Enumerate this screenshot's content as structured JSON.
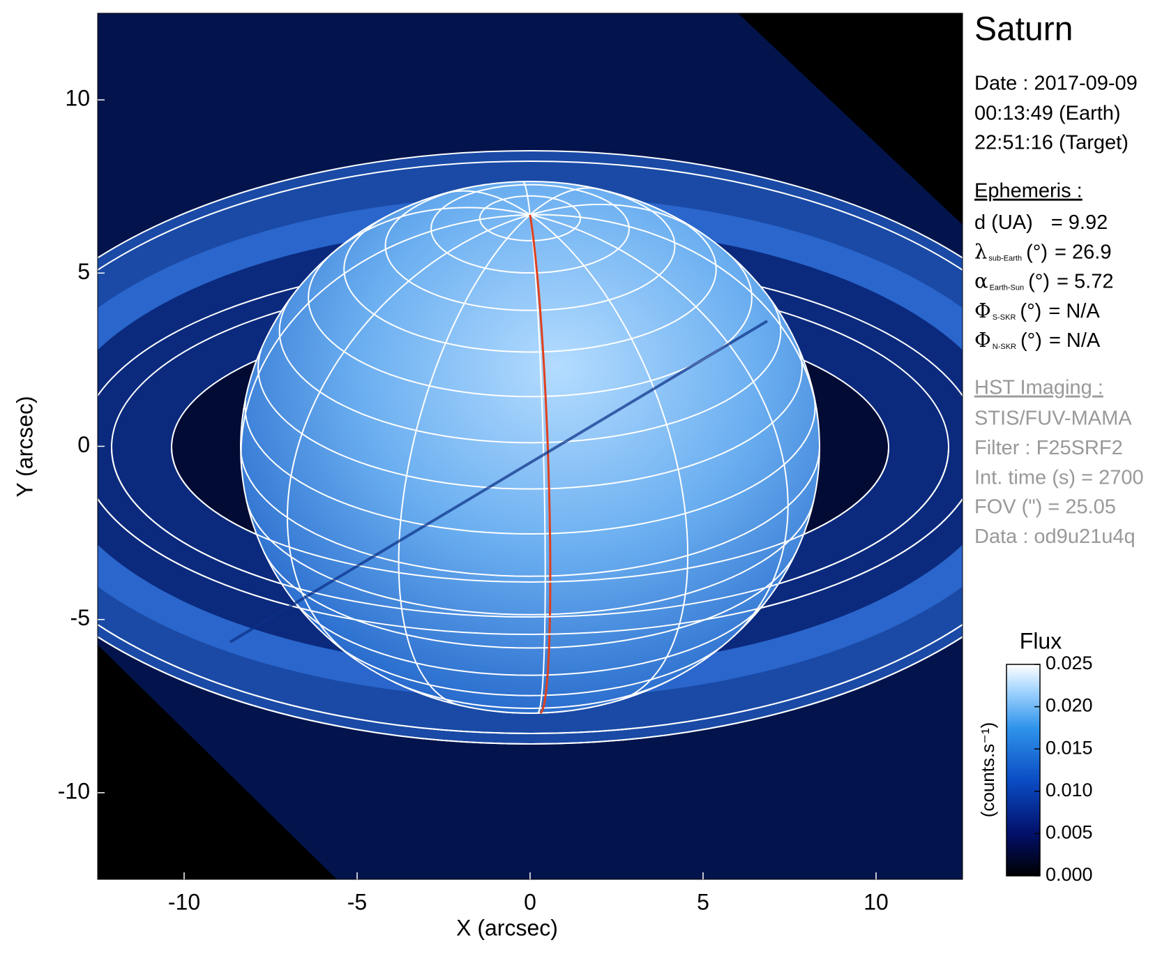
{
  "chart_data": {
    "type": "image",
    "title": "Saturn",
    "xlabel": "X (arcsec)",
    "ylabel": "Y (arcsec)",
    "xlim": [
      -12.5,
      12.5
    ],
    "ylim": [
      -12.5,
      12.5
    ],
    "xticks": [
      -10,
      -5,
      0,
      5,
      10
    ],
    "yticks": [
      -10,
      -5,
      0,
      5,
      10
    ],
    "colorbar": {
      "title": "Flux",
      "label": "(counts.s⁻¹)",
      "clim": [
        0,
        0.025
      ],
      "ticks": [
        {
          "value": 0,
          "label": "0.000"
        },
        {
          "value": 0.005,
          "label": "0.005"
        },
        {
          "value": 0.01,
          "label": "0.010"
        },
        {
          "value": 0.015,
          "label": "0.015"
        },
        {
          "value": 0.02,
          "label": "0.020"
        },
        {
          "value": 0.025,
          "label": "0.025"
        }
      ]
    },
    "info": {
      "date": "Date : 2017-09-09",
      "earth_time": "00:13:49 (Earth)",
      "target_time": "22:51:16 (Target)",
      "ephemeris_title": "Ephemeris :",
      "ephemeris": [
        {
          "symbol": "d (UA)",
          "value": "= 9.92"
        },
        {
          "symbol": "λ",
          "subscript": "sub-Earth",
          "unit": "(°)",
          "value": "= 26.9"
        },
        {
          "symbol": "α",
          "subscript": "Earth-Sun",
          "unit": "(°)",
          "value": "= 5.72"
        },
        {
          "symbol": "Φ",
          "subscript": "S-SKR",
          "unit": "(°)",
          "value": "= N/A"
        },
        {
          "symbol": "Φ",
          "subscript": "N-SKR",
          "unit": "(°)",
          "value": "= N/A"
        }
      ],
      "imaging_title": "HST Imaging :",
      "imaging": [
        "STIS/FUV-MAMA",
        "Filter : F25SRF2",
        "Int. time (s) = 2700",
        "FOV (\") = 25.05",
        "Data : od9u21u4q"
      ]
    }
  }
}
